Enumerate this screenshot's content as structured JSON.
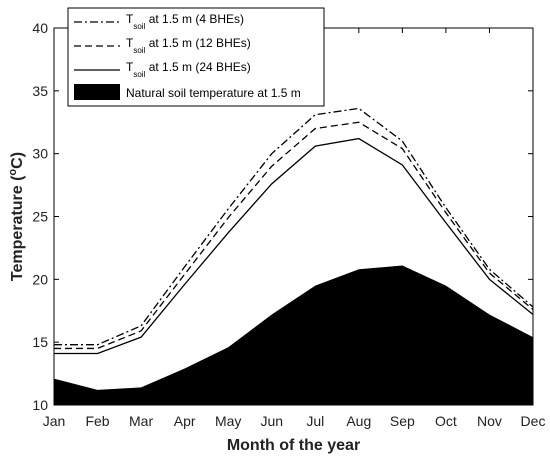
{
  "chart_data": {
    "type": "line",
    "title": "",
    "xlabel": "Month of the year",
    "ylabel_main": "Temperature (",
    "ylabel_unit_sup": "o",
    "ylabel_unit_rest": "C)",
    "categories": [
      "Jan",
      "Feb",
      "Mar",
      "Apr",
      "May",
      "Jun",
      "Jul",
      "Aug",
      "Sep",
      "Oct",
      "Nov",
      "Dec"
    ],
    "ylim": [
      10,
      40
    ],
    "yticks": [
      "10",
      "15",
      "20",
      "25",
      "30",
      "35",
      "40"
    ],
    "grid": false,
    "legend_position": "top-left",
    "series": [
      {
        "label_main": "T",
        "label_sub": "soil",
        "label_rest": " at 1.5 m (4 BHEs)",
        "style": "dashdot",
        "values": [
          14.8,
          14.8,
          16.3,
          21.0,
          25.6,
          30.0,
          33.1,
          33.6,
          31.0,
          25.7,
          20.8,
          17.8
        ]
      },
      {
        "label_main": "T",
        "label_sub": "soil",
        "label_rest": " at 1.5 m (12 BHEs)",
        "style": "dashed",
        "values": [
          14.5,
          14.5,
          15.9,
          20.4,
          24.9,
          29.0,
          32.0,
          32.5,
          30.4,
          25.3,
          20.5,
          17.6
        ]
      },
      {
        "label_main": "T",
        "label_sub": "soil",
        "label_rest": " at 1.5 m (24 BHEs)",
        "style": "solid",
        "values": [
          14.1,
          14.1,
          15.4,
          19.6,
          23.7,
          27.6,
          30.6,
          31.2,
          29.1,
          24.5,
          20.0,
          17.2
        ]
      },
      {
        "label": "Natural soil temperature at 1.5 m",
        "style": "area",
        "values": [
          12.1,
          11.2,
          11.4,
          12.9,
          14.6,
          17.2,
          19.5,
          20.8,
          21.1,
          19.5,
          17.2,
          15.4
        ]
      }
    ],
    "colors": {
      "line": "#000000",
      "area": "#000000",
      "background": "#ffffff"
    }
  }
}
